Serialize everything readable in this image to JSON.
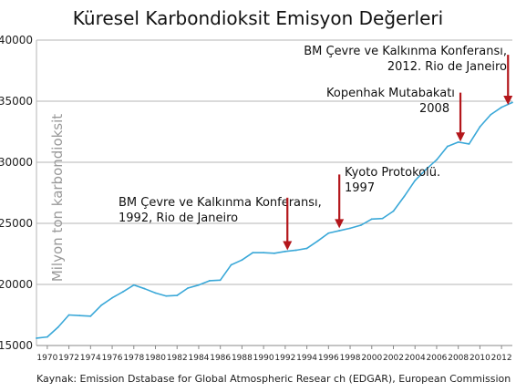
{
  "chart_data": {
    "type": "line",
    "title": "Küresel Karbondioksit Emisyon Değerleri",
    "ylabel": "Milyon ton karbondioksit",
    "xlabel": "",
    "ylim": [
      15000,
      40000
    ],
    "xlim": [
      1969,
      2013
    ],
    "yticks": [
      15000,
      20000,
      25000,
      30000,
      35000,
      40000
    ],
    "ytick_labels": [
      "15000",
      "20000",
      "25000",
      "30000",
      "35000",
      "40000"
    ],
    "xticks": [
      1970,
      1972,
      1974,
      1976,
      1978,
      1980,
      1982,
      1984,
      1986,
      1988,
      1990,
      1992,
      1994,
      1996,
      1998,
      2000,
      2002,
      2004,
      2006,
      2008,
      2010,
      2012
    ],
    "xtick_labels": [
      "1970",
      "1972",
      "1974",
      "1976",
      "1978",
      "1980",
      "1982",
      "1984",
      "1986",
      "1988",
      "1990",
      "1992",
      "1994",
      "1996",
      "1998",
      "2000",
      "2002",
      "2004",
      "2006",
      "2008",
      "2010",
      "2012"
    ],
    "grid": true,
    "line_color": "#3aa8d8",
    "arrow_color": "#b3161b",
    "series": [
      {
        "x": [
          1969,
          1970,
          1971,
          1972,
          1973,
          1974,
          1975,
          1976,
          1977,
          1978,
          1979,
          1980,
          1981,
          1982,
          1983,
          1984,
          1985,
          1986,
          1987,
          1988,
          1989,
          1990,
          1991,
          1992,
          1993,
          1994,
          1995,
          1996,
          1997,
          1998,
          1999,
          2000,
          2001,
          2002,
          2003,
          2004,
          2005,
          2006,
          2007,
          2008,
          2009,
          2010,
          2011,
          2012,
          2013
        ],
        "values": [
          15600,
          15700,
          16500,
          17500,
          17450,
          17400,
          18300,
          18900,
          19400,
          19950,
          19650,
          19300,
          19050,
          19100,
          19700,
          19950,
          20300,
          20350,
          21600,
          22000,
          22600,
          22600,
          22550,
          22700,
          22800,
          22950,
          23550,
          24200,
          24400,
          24600,
          24850,
          25350,
          25400,
          26000,
          27200,
          28500,
          29400,
          30200,
          31300,
          31650,
          31500,
          32900,
          33900,
          34500,
          34900
        ]
      }
    ],
    "annotations": [
      {
        "lines": [
          "BM Çevre ve Kalkınma Konferansı,",
          "1992, Rio de Janeiro"
        ],
        "arrow_x": 1992.2,
        "arrow_from": 27100,
        "arrow_to": 22800
      },
      {
        "lines": [
          "Kyoto Protokolü.",
          "1997"
        ],
        "arrow_x": 1997,
        "arrow_from": 29000,
        "arrow_to": 24600
      },
      {
        "lines": [
          "Kopenhak Mutabakatı",
          "2008"
        ],
        "arrow_x": 2008.2,
        "arrow_from": 35700,
        "arrow_to": 31700
      },
      {
        "lines": [
          "BM Çevre ve Kalkınma Konferansı,",
          "2012. Rio de Janeiro"
        ],
        "arrow_x": 2012.6,
        "arrow_from": 38800,
        "arrow_to": 34700
      }
    ],
    "source": "Kaynak: Emission Dstabase for Global Atmospheric Resear ch (EDGAR), European Commission"
  }
}
